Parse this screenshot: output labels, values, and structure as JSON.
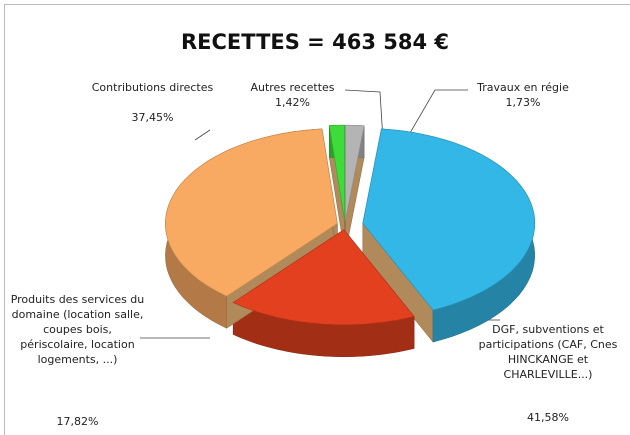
{
  "chart_data": {
    "type": "pie",
    "title": "RECETTES = 463 584 €",
    "categories": [
      "Travaux en régie",
      "DGF, subventions et participations (CAF, Cnes HINCKANGE et CHARLEVILLE...)",
      "Produits des services du domaine (location salle, coupes bois, périscolaire, location logements, ...)",
      "Contributions directes",
      "Autres recettes"
    ],
    "values": [
      1.73,
      41.58,
      17.82,
      37.45,
      1.42
    ],
    "value_labels": [
      "1,73%",
      "41,58%",
      "17,82%",
      "37,45%",
      "1,42%"
    ],
    "colors": [
      "#b4b4b4",
      "#33b7e6",
      "#e2401e",
      "#f8aa62",
      "#3ddc3a"
    ]
  }
}
